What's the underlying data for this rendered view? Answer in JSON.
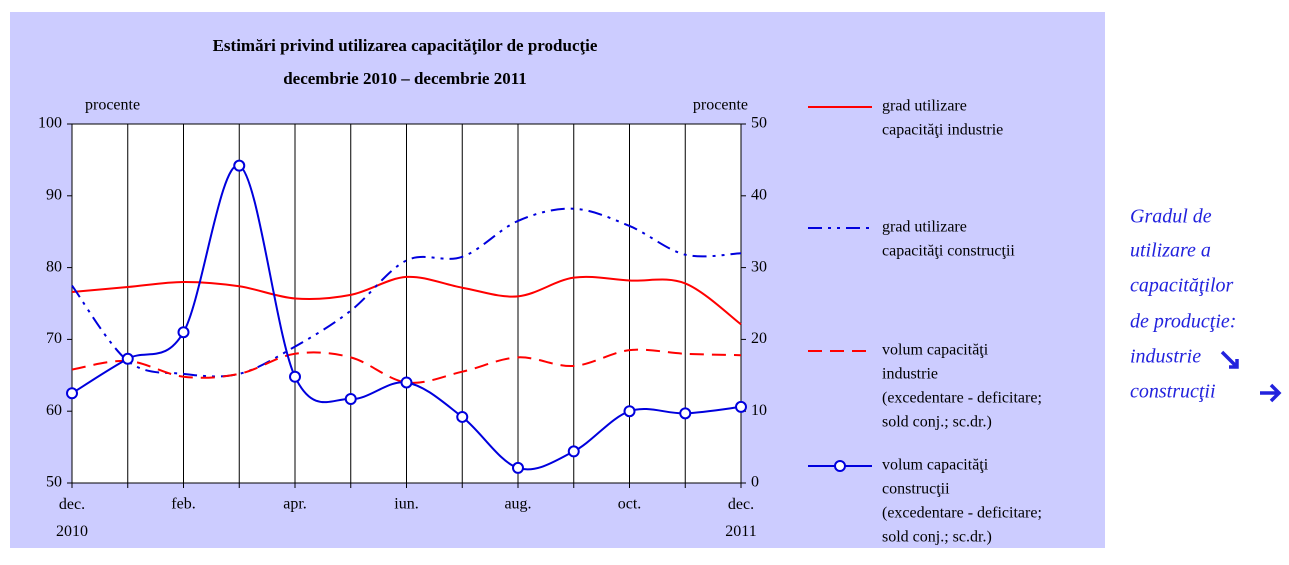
{
  "chart_data": {
    "type": "line",
    "title": "Estimări privind utilizarea capacităţilor de producţie",
    "subtitle": "decembrie 2010 – decembrie 2011",
    "y_axis_label": "procente",
    "y2_axis_label": "procente",
    "categories": [
      "dec. 2010",
      null,
      "feb.",
      null,
      "apr.",
      null,
      "iun.",
      null,
      "aug.",
      null,
      "oct.",
      null,
      "dec. 2011"
    ],
    "ylim": [
      50,
      100
    ],
    "yticks": [
      50,
      60,
      70,
      80,
      90,
      100
    ],
    "y2lim": [
      0,
      50
    ],
    "y2ticks": [
      0,
      10,
      20,
      30,
      40,
      50
    ],
    "x_grid": true,
    "series": [
      {
        "name": [
          "grad utilizare",
          "capacităţi industrie"
        ],
        "color": "#ff0000",
        "style": "solid",
        "axis": "y",
        "values": [
          76.6,
          77.3,
          78,
          77.4,
          75.7,
          76.2,
          78.7,
          77.2,
          76,
          78.6,
          78.2,
          77.8,
          72.1
        ]
      },
      {
        "name": [
          "grad utilizare",
          "capacităţi construcţii"
        ],
        "color": "#0000dd",
        "style": "dashdot",
        "axis": "y",
        "values": [
          77.5,
          67,
          65.2,
          65.2,
          69,
          74,
          81,
          81.5,
          86.5,
          88.2,
          85.8,
          81.8,
          82
        ]
      },
      {
        "name": [
          "volum capacităţi",
          "industrie",
          "(excedentare - deficitare;",
          "sold conj.; sc.dr.)"
        ],
        "color": "#ff0000",
        "style": "dashed",
        "axis": "y2",
        "values": [
          15.8,
          17,
          14.8,
          15.2,
          18,
          17.5,
          14,
          15.5,
          17.5,
          16.3,
          18.5,
          18,
          17.8
        ]
      },
      {
        "name": [
          "volum capacităţi",
          "construcţii",
          "(excedentare - deficitare;",
          "sold conj.; sc.dr.)"
        ],
        "color": "#0000dd",
        "style": "markers",
        "axis": "y2",
        "values": [
          12.5,
          17.3,
          21,
          44.2,
          14.8,
          11.7,
          14,
          9.2,
          2.1,
          4.4,
          10,
          9.7,
          10.6
        ]
      }
    ]
  },
  "side_note": [
    "Gradul de",
    "utilizare a",
    "capacităţilor",
    "de producţie:",
    "industrie",
    "construcţii"
  ]
}
